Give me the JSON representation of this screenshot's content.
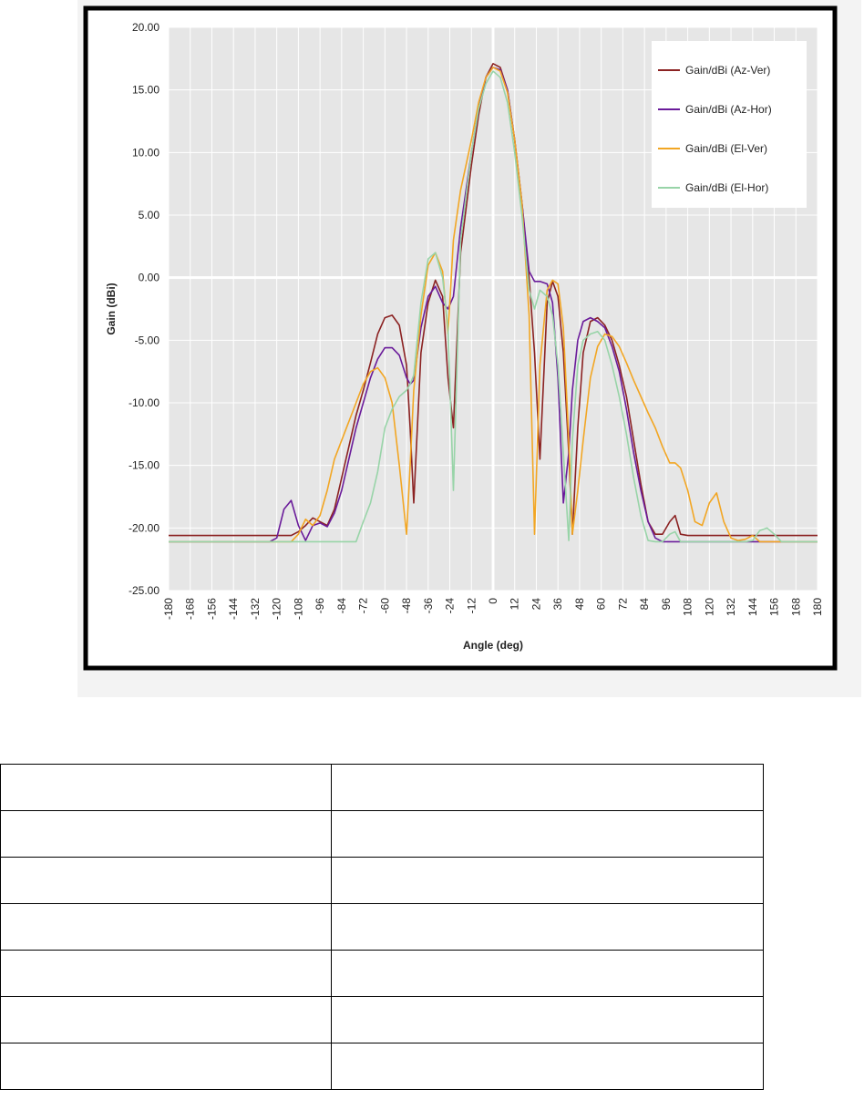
{
  "chart_data": {
    "type": "line",
    "y_label": "Gain (dBi)",
    "x_label": "Angle (deg)",
    "grid": true,
    "xlim": [
      -180,
      180
    ],
    "xticks": [
      -180,
      -168,
      -156,
      -144,
      -132,
      -120,
      -108,
      -96,
      -84,
      -72,
      -60,
      -48,
      -36,
      -24,
      -12,
      0,
      12,
      24,
      36,
      48,
      60,
      72,
      84,
      96,
      108,
      120,
      132,
      144,
      156,
      168,
      180
    ],
    "ylim": [
      -25,
      20
    ],
    "yticks": [
      {
        "value": 20,
        "label": "20.00"
      },
      {
        "value": 15,
        "label": "15.00"
      },
      {
        "value": 10,
        "label": "10.00"
      },
      {
        "value": 5,
        "label": "5.00"
      },
      {
        "value": 0,
        "label": "0.00"
      },
      {
        "value": -5,
        "label": "-5.00"
      },
      {
        "value": -10,
        "label": "-10.00"
      },
      {
        "value": -15,
        "label": "-15.00"
      },
      {
        "value": -20,
        "label": "-20.00"
      },
      {
        "value": -25,
        "label": "-25.00"
      }
    ],
    "legend": "top-right",
    "x": [
      -180,
      -132,
      -124,
      -120,
      -116,
      -112,
      -108,
      -104,
      -100,
      -96,
      -92,
      -88,
      -84,
      -80,
      -76,
      -72,
      -68,
      -64,
      -60,
      -56,
      -52,
      -48,
      -46,
      -44,
      -40,
      -36,
      -32,
      -28,
      -25,
      -22,
      -18,
      -12,
      -8,
      -4,
      0,
      4,
      8,
      12,
      16,
      20,
      23,
      26,
      30,
      33,
      36,
      39,
      42,
      44,
      47,
      50,
      54,
      58,
      62,
      66,
      70,
      74,
      78,
      82,
      86,
      90,
      94,
      98,
      101,
      104,
      108,
      112,
      116,
      120,
      124,
      128,
      132,
      136,
      140,
      144,
      148,
      152,
      156,
      160,
      180
    ],
    "series": [
      {
        "name": "Gain/dBi (Az-Ver)",
        "color": "#8b2222",
        "values": [
          -20.6,
          -20.6,
          -20.6,
          -20.6,
          -20.6,
          -20.6,
          -20.3,
          -19.8,
          -19.2,
          -19.5,
          -19.8,
          -18.5,
          -16,
          -13.5,
          -11,
          -9,
          -6.8,
          -4.5,
          -3.2,
          -3,
          -3.8,
          -7,
          -12,
          -18,
          -6,
          -2,
          -0.2,
          -1.5,
          -8,
          -12,
          2,
          9,
          13,
          16,
          17.1,
          16.8,
          15,
          11,
          6,
          0,
          -6,
          -14.5,
          -2,
          -0.3,
          -1.5,
          -6,
          -14,
          -20.5,
          -12,
          -6,
          -3.5,
          -3.2,
          -3.8,
          -5,
          -7,
          -9.5,
          -13,
          -16.5,
          -19.5,
          -20.5,
          -20.5,
          -19.5,
          -19,
          -20.5,
          -20.6,
          -20.6,
          -20.6,
          -20.6,
          -20.6,
          -20.6,
          -20.6,
          -20.6,
          -20.6,
          -20.6,
          -20.6,
          -20.6,
          -20.6,
          -20.6,
          -20.6
        ]
      },
      {
        "name": "Gain/dBi (Az-Hor)",
        "color": "#6a1b9a",
        "values": [
          -21.1,
          -21.1,
          -21.1,
          -20.8,
          -18.5,
          -17.8,
          -19.8,
          -21,
          -19.8,
          -19.6,
          -19.9,
          -18.8,
          -17,
          -14.5,
          -12,
          -10,
          -8,
          -6.5,
          -5.6,
          -5.6,
          -6.2,
          -8,
          -8.5,
          -8.2,
          -4,
          -1.5,
          -0.7,
          -2,
          -2.5,
          -1.5,
          4,
          10,
          13.5,
          16,
          16.8,
          16.6,
          15,
          11,
          6,
          0.5,
          -0.3,
          -0.3,
          -0.5,
          -2,
          -8,
          -18,
          -14,
          -9,
          -5,
          -3.5,
          -3.2,
          -3.5,
          -4,
          -5.5,
          -7.5,
          -10.5,
          -14,
          -17,
          -19.5,
          -20.8,
          -21.1,
          -21.1,
          -21.1,
          -21.1,
          -21.1,
          -21.1,
          -21.1,
          -21.1,
          -21.1,
          -21.1,
          -21.1,
          -21.1,
          -21.1,
          -21.1,
          -21.1,
          -21.1,
          -21.1,
          -21.1,
          -21.1
        ]
      },
      {
        "name": "Gain/dBi (El-Ver)",
        "color": "#f2a623",
        "values": [
          -21.1,
          -21.1,
          -21.1,
          -21.1,
          -21.1,
          -21.1,
          -20.5,
          -19.3,
          -19.8,
          -19,
          -17,
          -14.5,
          -13,
          -11.5,
          -10,
          -8.5,
          -7.5,
          -7.2,
          -8,
          -10,
          -15,
          -20.5,
          -15,
          -9,
          -3,
          1,
          2,
          0.5,
          -4.5,
          3,
          7,
          11,
          14,
          16,
          16.8,
          16.5,
          14.8,
          11,
          6,
          -3,
          -20.5,
          -7,
          -1,
          -0.2,
          -0.5,
          -4,
          -13,
          -20.5,
          -17,
          -13,
          -8,
          -5.5,
          -4.5,
          -4.7,
          -5.5,
          -6.8,
          -8.2,
          -9.5,
          -10.8,
          -12,
          -13.5,
          -14.8,
          -14.8,
          -15.2,
          -17,
          -19.5,
          -19.8,
          -18,
          -17.2,
          -19.5,
          -20.8,
          -21,
          -20.9,
          -20.6,
          -21.1,
          -21.1,
          -21.1,
          -21.1,
          -21.1
        ]
      },
      {
        "name": "Gain/dBi (El-Hor)",
        "color": "#98d4a8",
        "values": [
          -21.1,
          -21.1,
          -21.1,
          -21.1,
          -21.1,
          -21.1,
          -21.1,
          -21.1,
          -21.1,
          -21.1,
          -21.1,
          -21.1,
          -21.1,
          -21.1,
          -21.1,
          -19.5,
          -18,
          -15.5,
          -12,
          -10.5,
          -9.5,
          -9,
          -8.5,
          -7.8,
          -2,
          1.5,
          2,
          0,
          -4,
          -17,
          3,
          10,
          13.5,
          15.5,
          16.5,
          16,
          14,
          10,
          5,
          -1,
          -2.5,
          -1,
          -1.5,
          -3,
          -7,
          -14,
          -21,
          -13,
          -7,
          -5,
          -4.5,
          -4.3,
          -5,
          -7,
          -9.5,
          -12.5,
          -16,
          -19,
          -21,
          -21.1,
          -21.1,
          -20.5,
          -20.3,
          -21.1,
          -21.1,
          -21.1,
          -21.1,
          -21.1,
          -21.1,
          -21.1,
          -21.1,
          -21.1,
          -21.1,
          -21,
          -20.2,
          -20,
          -20.5,
          -21.1,
          -21.1
        ]
      }
    ]
  }
}
